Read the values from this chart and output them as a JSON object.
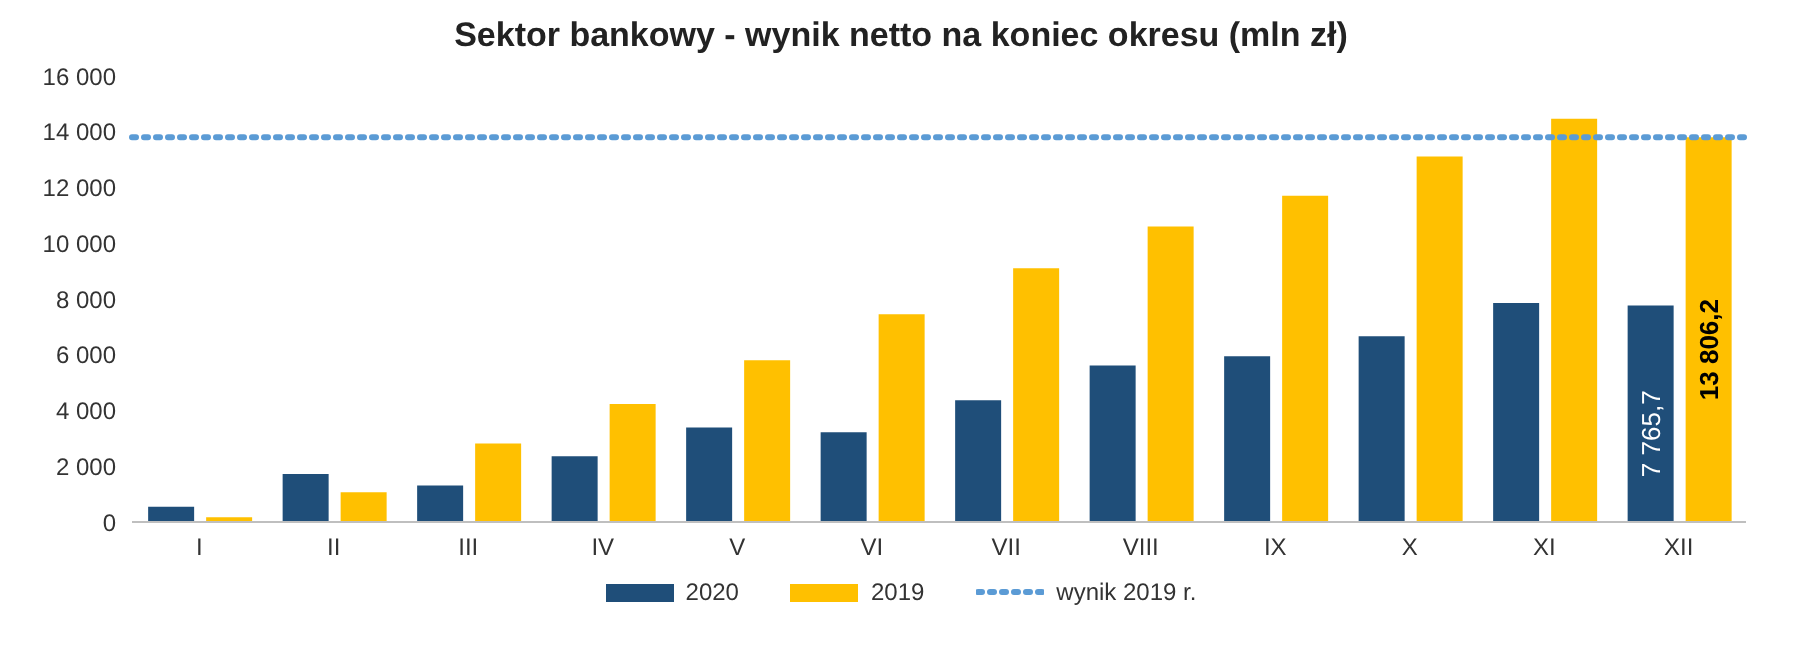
{
  "chart_data": {
    "type": "bar",
    "title": "Sektor bankowy - wynik netto na koniec okresu (mln zł)",
    "categories": [
      "I",
      "II",
      "III",
      "IV",
      "V",
      "VI",
      "VII",
      "VIII",
      "IX",
      "X",
      "XI",
      "XII"
    ],
    "series": [
      {
        "name": "2020",
        "color": "#1f4e79",
        "values": [
          550,
          1720,
          1310,
          2360,
          3390,
          3220,
          4370,
          5610,
          5950,
          6660,
          7860,
          7765.7
        ],
        "value_labels": [
          null,
          null,
          null,
          null,
          null,
          null,
          null,
          null,
          null,
          null,
          null,
          "7 765,7"
        ]
      },
      {
        "name": "2019",
        "color": "#ffc000",
        "values": [
          170,
          1070,
          2820,
          4230,
          5800,
          7450,
          9100,
          10600,
          11700,
          13110,
          14470,
          13806.2
        ],
        "value_labels": [
          null,
          null,
          null,
          null,
          null,
          null,
          null,
          null,
          null,
          null,
          null,
          "13 806,2"
        ]
      }
    ],
    "ylim": [
      0,
      16000
    ],
    "yticks": [
      {
        "value": 0,
        "label": "0"
      },
      {
        "value": 2000,
        "label": "2 000"
      },
      {
        "value": 4000,
        "label": "4 000"
      },
      {
        "value": 6000,
        "label": "6 000"
      },
      {
        "value": 8000,
        "label": "8 000"
      },
      {
        "value": 10000,
        "label": "10 000"
      },
      {
        "value": 12000,
        "label": "12 000"
      },
      {
        "value": 14000,
        "label": "14 000"
      },
      {
        "value": 16000,
        "label": "16 000"
      }
    ],
    "ref_lines": [
      {
        "axis": "y",
        "value": 13806.2,
        "label": "wynik 2019 r.",
        "color": "#5b9bd5",
        "line_style": "dotted"
      }
    ],
    "grid": false,
    "legend": "bottom"
  }
}
